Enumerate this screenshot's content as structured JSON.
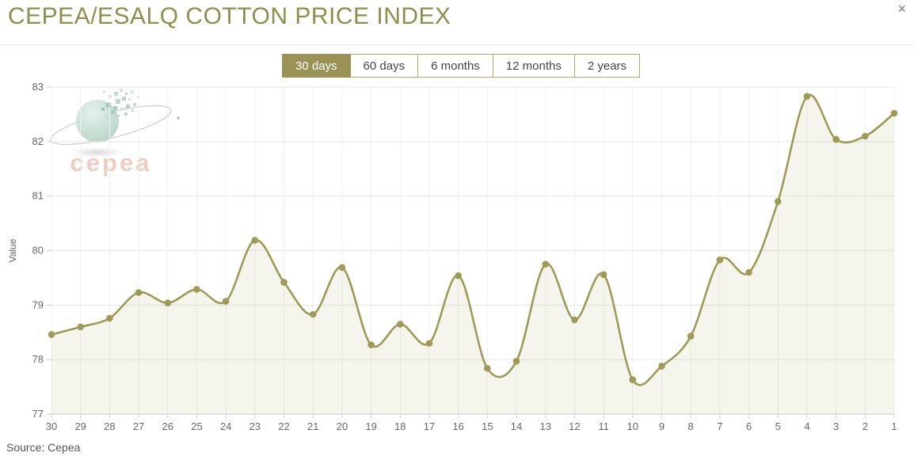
{
  "header": {
    "title": "CEPEA/ESALQ COTTON PRICE INDEX",
    "close_glyph": "×"
  },
  "tabs": [
    {
      "label": "30 days",
      "active": true
    },
    {
      "label": "60 days",
      "active": false
    },
    {
      "label": "6 months",
      "active": false
    },
    {
      "label": "12 months",
      "active": false
    },
    {
      "label": "2 years",
      "active": false
    }
  ],
  "watermark": {
    "brand": "cepea"
  },
  "footer": {
    "source": "Source: Cepea"
  },
  "theme": {
    "title_color": "#8f8e4d",
    "active_tab_color": "#9a9355",
    "line_color": "#9f9a55",
    "area_fill": "rgba(159,154,85,0.10)",
    "grid_color": "#e6e6e6",
    "axis_color": "#cccccc",
    "label_color": "#666666"
  },
  "chart_data": {
    "type": "line",
    "x": [
      30,
      29,
      28,
      27,
      26,
      25,
      24,
      23,
      22,
      21,
      20,
      19,
      18,
      17,
      16,
      15,
      14,
      13,
      12,
      11,
      10,
      9,
      8,
      7,
      6,
      5,
      4,
      3,
      2,
      1
    ],
    "values": [
      78.46,
      78.6,
      78.76,
      79.23,
      79.04,
      79.29,
      79.07,
      80.19,
      79.42,
      78.83,
      79.69,
      78.27,
      78.65,
      78.3,
      79.54,
      77.84,
      77.97,
      79.75,
      78.73,
      79.56,
      77.63,
      77.88,
      78.43,
      79.83,
      79.6,
      80.9,
      82.83,
      82.04,
      82.1,
      82.52
    ],
    "title": "",
    "xlabel": "",
    "ylabel": "Value",
    "ylim": [
      77,
      83
    ],
    "yticks": [
      77,
      78,
      79,
      80,
      81,
      82,
      83
    ],
    "grid": true,
    "legend": false,
    "marker": "circle",
    "smooth": true
  }
}
